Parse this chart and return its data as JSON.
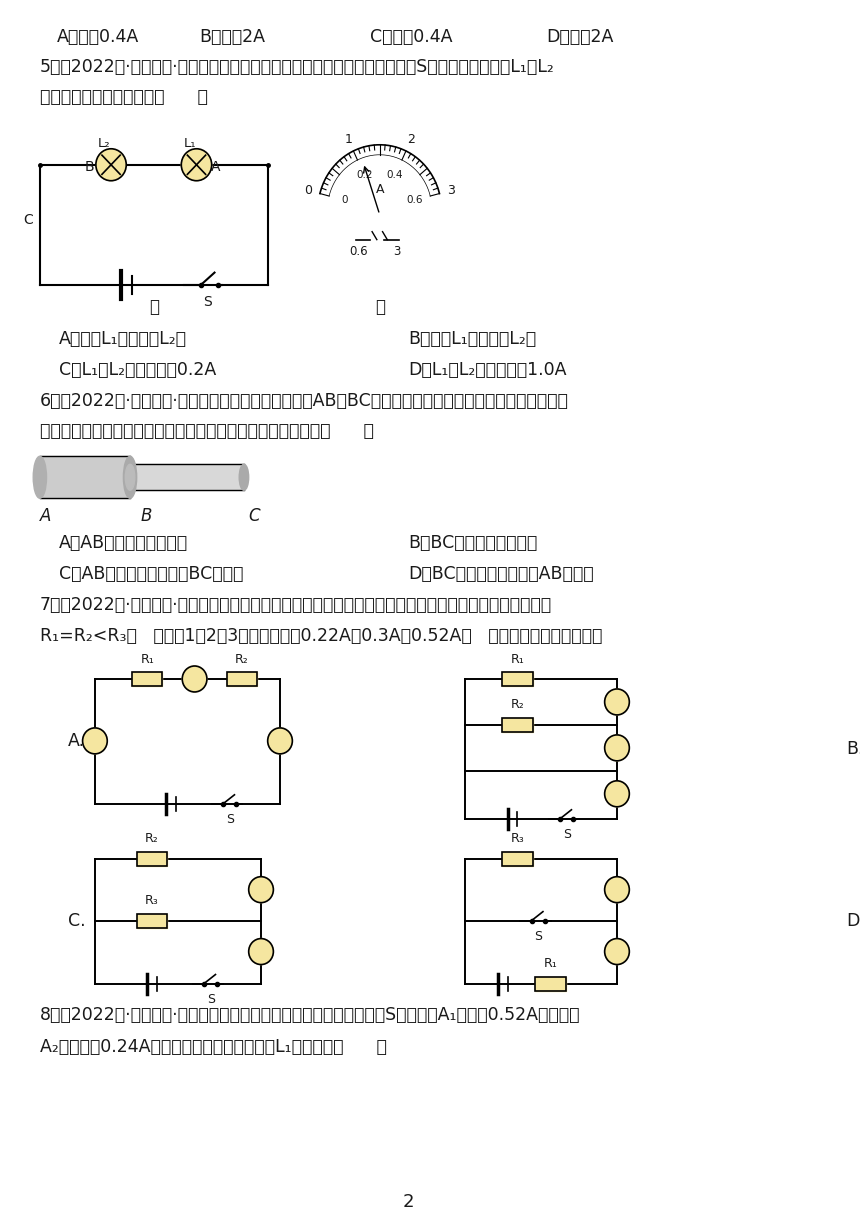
{
  "bg_color": "#ffffff",
  "text_color": "#1a1a1a",
  "page_number": "2",
  "q1_A": "A．等于0.4A",
  "q1_B": "B．等于2A",
  "q1_C": "C．小于0.4A",
  "q1_D": "D．小于2A",
  "q5_text": "5．（2022秋·湖南益阳·九年级统考期末）如图所示的串联电路中，闭合开关S时，小桂发现灯泡L₁比L₂",
  "q5_text2": "更亮，下列说法正确的是（      ）",
  "q5_label1": "甲",
  "q5_label2": "乙",
  "q5_A": "A．经过L₁的电流比L₂大",
  "q5_B": "B．经过L₁的电流比L₂小",
  "q5_C": "C．L₁、L₂的电流都是0.2A",
  "q5_D": "D．L₁、L₂的电流都是1.0A",
  "q6_text": "6．（2022秋·湖南永州·九年级统考期末）如图所示，AB和BC是由同种材料制成的长度相同、横截面积不",
  "q6_text2": "同的两段导体，将它们串联后连入电路中，下列说法正确的是（      ）",
  "q6_A": "A．AB段电阻大，电流小",
  "q6_B": "B．BC段电阻大，电流小",
  "q6_C": "C．AB段电阻大，电流与BC段相等",
  "q6_D": "D．BC段电阻大，电流与AB段相等",
  "q7_text": "7．（2022秋·湖南株洲·九年级期末）小明在探究电路的电流规律实验时用了下列选项中的某个电路，已知",
  "q7_text2": "R₁=R₂<R₃，   电流表1、2、3的示数分别是0.22A、0.3A、0.52A．   则由此推断所用电路应是",
  "q8_text": "8．（2022秋·湖南永州·九年级统考期末）如图所示电路图，闭合开关S，电流表A₁的示数0.52A，电流表",
  "q8_text2": "A₂的示数为0.24A，根据电流规律，则通过灯L₁的电流是（      ）"
}
